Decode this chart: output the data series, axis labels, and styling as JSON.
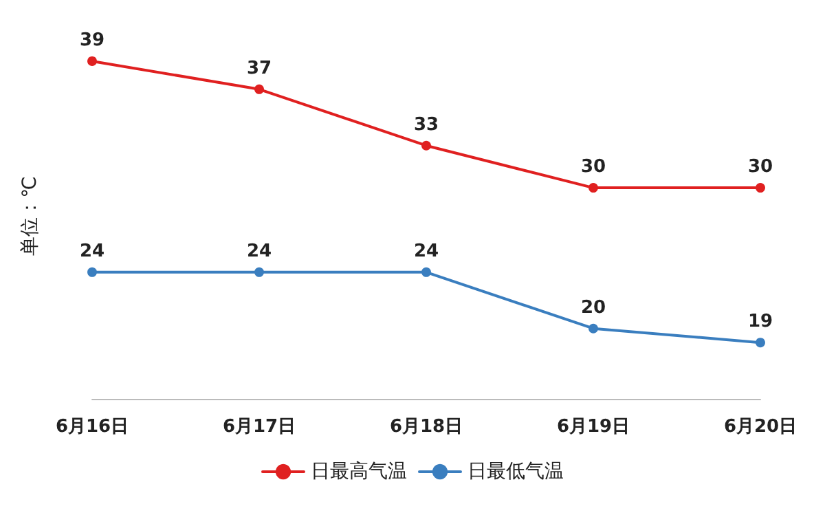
{
  "chart_data": {
    "type": "line",
    "ylabel": "单位：℃",
    "categories": [
      "6月16日",
      "6月17日",
      "6月18日",
      "6月19日",
      "6月20日"
    ],
    "series": [
      {
        "name": "日最高气温",
        "color": "#e02020",
        "values": [
          39,
          37,
          33,
          30,
          30
        ]
      },
      {
        "name": "日最低气温",
        "color": "#3a7ebf",
        "values": [
          24,
          24,
          24,
          20,
          19
        ]
      }
    ],
    "data_labels": true,
    "legend": "bottom",
    "marker": "circle",
    "line_style": "solid",
    "grid": false
  }
}
